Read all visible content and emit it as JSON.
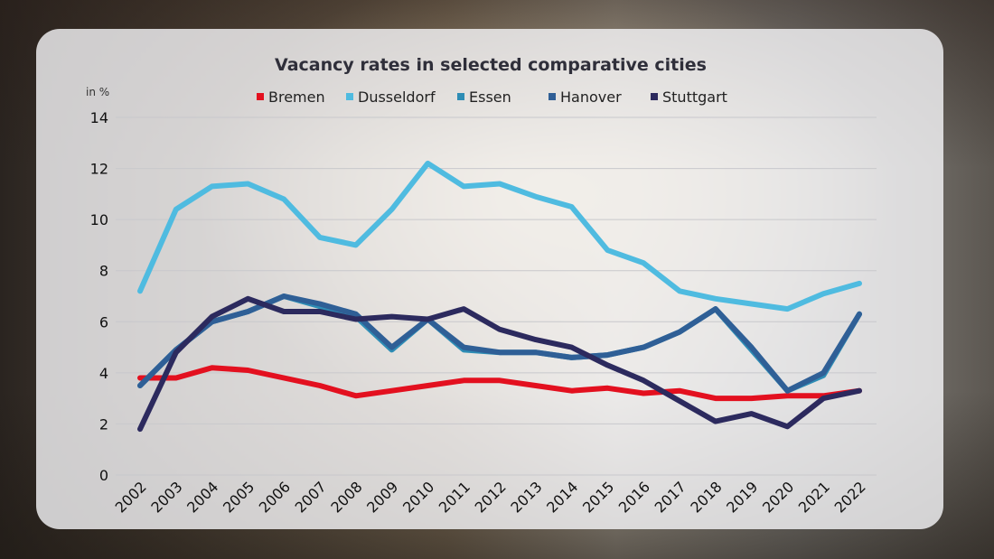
{
  "chart_data": {
    "type": "line",
    "title": "Vacancy rates in selected comparative cities",
    "unit_label": "in %",
    "ylim": [
      0,
      14
    ],
    "yticks": [
      "0",
      "2",
      "4",
      "6",
      "8",
      "10",
      "12",
      "14"
    ],
    "x": [
      "2002",
      "2003",
      "2004",
      "2005",
      "2006",
      "2007",
      "2008",
      "2009",
      "2010",
      "2011",
      "2012",
      "2013",
      "2014",
      "2015",
      "2016",
      "2017",
      "2018",
      "2019",
      "2020",
      "2021",
      "2022"
    ],
    "grid": true,
    "legend_position": "top",
    "series": [
      {
        "name": "Bremen",
        "color": "#e3101f",
        "values": [
          3.8,
          3.8,
          4.2,
          4.1,
          3.8,
          3.5,
          3.1,
          3.3,
          3.5,
          3.7,
          3.7,
          3.5,
          3.3,
          3.4,
          3.2,
          3.3,
          3.0,
          3.0,
          3.1,
          3.1,
          3.3
        ]
      },
      {
        "name": "Dusseldorf",
        "color": "#4fbbe0",
        "values": [
          7.2,
          10.4,
          11.3,
          11.4,
          10.8,
          9.3,
          9.0,
          10.4,
          12.2,
          11.3,
          11.4,
          10.9,
          10.5,
          8.8,
          8.3,
          7.2,
          6.9,
          6.7,
          6.5,
          7.1,
          7.5
        ]
      },
      {
        "name": "Essen",
        "color": "#2e8db5",
        "values": [
          3.5,
          4.9,
          6.0,
          6.4,
          7.0,
          6.6,
          6.2,
          4.9,
          6.1,
          4.9,
          4.8,
          4.8,
          4.6,
          4.7,
          5.0,
          5.6,
          6.5,
          4.9,
          3.3,
          3.9,
          6.3
        ]
      },
      {
        "name": "Hanover",
        "color": "#2f5f96",
        "values": [
          3.5,
          4.9,
          6.0,
          6.4,
          7.0,
          6.7,
          6.3,
          5.0,
          6.1,
          5.0,
          4.8,
          4.8,
          4.6,
          4.7,
          5.0,
          5.6,
          6.5,
          5.0,
          3.3,
          4.0,
          6.3
        ]
      },
      {
        "name": "Stuttgart",
        "color": "#2c2a5e",
        "values": [
          1.8,
          4.8,
          6.2,
          6.9,
          6.4,
          6.4,
          6.1,
          6.2,
          6.1,
          6.5,
          5.7,
          5.3,
          5.0,
          4.3,
          3.7,
          2.9,
          2.1,
          2.4,
          1.9,
          3.0,
          3.3
        ]
      }
    ]
  }
}
